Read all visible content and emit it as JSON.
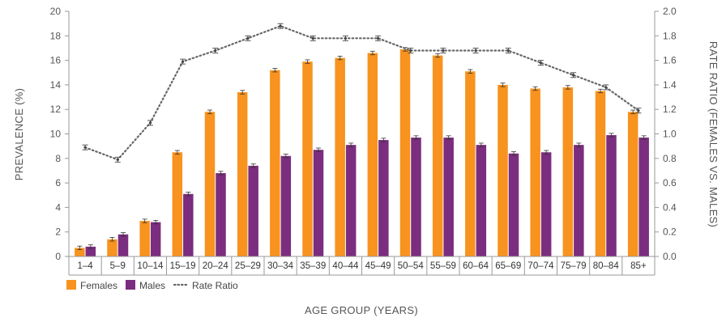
{
  "chart_data": {
    "type": "bar",
    "categories": [
      "1–4",
      "5–9",
      "10–14",
      "15–19",
      "20–24",
      "25–29",
      "30–34",
      "35–39",
      "40–44",
      "45–49",
      "50–54",
      "55–59",
      "60–64",
      "65–69",
      "70–74",
      "75–79",
      "80–84",
      "85+"
    ],
    "series": [
      {
        "name": "Females",
        "axis": "left",
        "type": "bar",
        "color": "#F7931E",
        "values": [
          0.7,
          1.4,
          2.9,
          8.5,
          11.8,
          13.4,
          15.2,
          15.9,
          16.2,
          16.6,
          16.9,
          16.4,
          15.1,
          14.0,
          13.7,
          13.8,
          13.5,
          11.8
        ]
      },
      {
        "name": "Males",
        "axis": "left",
        "type": "bar",
        "color": "#7B2D7F",
        "values": [
          0.8,
          1.8,
          2.8,
          5.1,
          6.8,
          7.4,
          8.2,
          8.7,
          9.1,
          9.5,
          9.7,
          9.7,
          9.1,
          8.4,
          8.5,
          9.1,
          9.9,
          9.7
        ]
      },
      {
        "name": "Rate Ratio",
        "axis": "right",
        "type": "line",
        "style": "dotted",
        "color": "#666666",
        "values": [
          0.89,
          0.79,
          1.09,
          1.59,
          1.68,
          1.78,
          1.88,
          1.78,
          1.78,
          1.78,
          1.68,
          1.68,
          1.68,
          1.68,
          1.58,
          1.48,
          1.38,
          1.19
        ]
      }
    ],
    "xlabel": "AGE GROUP (YEARS)",
    "ylabel": "PREVALENCE (%)",
    "y2label": "RATE RATIO (FEMALES VS. MALES)",
    "ylim": [
      0,
      20
    ],
    "y2lim": [
      0,
      2.0
    ],
    "yticks": [
      "0",
      "2",
      "4",
      "6",
      "8",
      "10",
      "12",
      "14",
      "16",
      "18",
      "20"
    ],
    "y2ticks": [
      "0.0",
      "0.2",
      "0.4",
      "0.6",
      "0.8",
      "1.0",
      "1.2",
      "1.4",
      "1.6",
      "1.8",
      "2.0"
    ],
    "grid": false,
    "error_bars": true,
    "legend": {
      "position": "bottom-left",
      "entries": [
        "Females",
        "Males",
        "Rate Ratio"
      ]
    }
  }
}
